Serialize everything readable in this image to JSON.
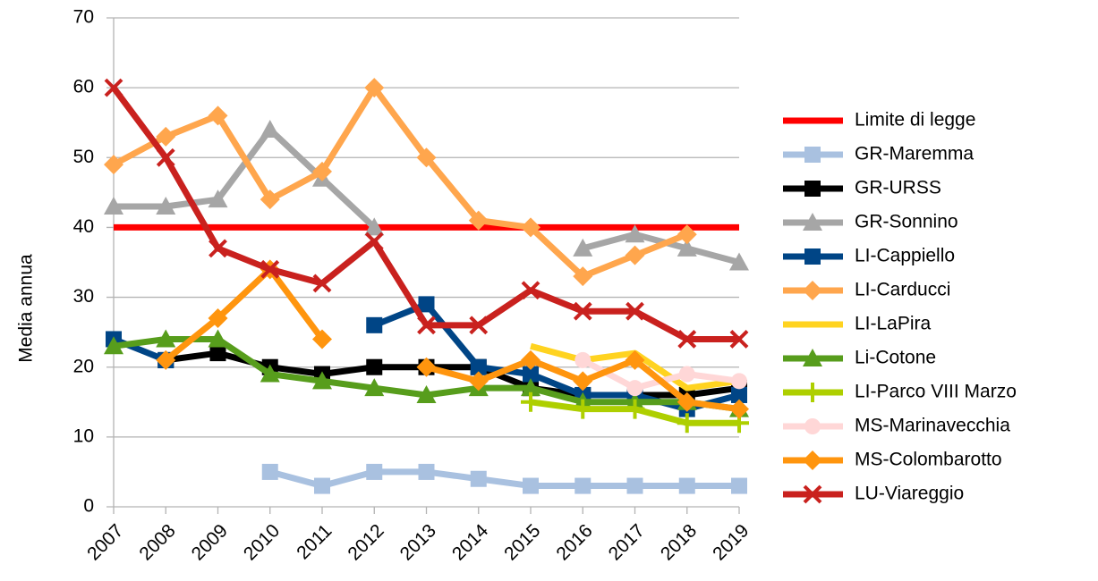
{
  "chart_data": {
    "type": "line",
    "y_label": "Media annua",
    "categories": [
      "2007",
      "2008",
      "2009",
      "2010",
      "2011",
      "2012",
      "2013",
      "2014",
      "2015",
      "2016",
      "2017",
      "2018",
      "2019"
    ],
    "ylim": [
      0,
      70
    ],
    "yticks": [
      0,
      10,
      20,
      30,
      40,
      50,
      60,
      70
    ],
    "grid": true,
    "legend": "right",
    "series": [
      {
        "name": "Limite di legge",
        "color": "#ff0000",
        "marker": "none",
        "values": [
          40,
          40,
          40,
          40,
          40,
          40,
          40,
          40,
          40,
          40,
          40,
          40,
          40
        ]
      },
      {
        "name": "GR-Maremma",
        "color": "#a9c1e0",
        "marker": "square",
        "values": [
          null,
          null,
          null,
          5,
          3,
          5,
          5,
          4,
          3,
          3,
          3,
          3,
          3
        ]
      },
      {
        "name": "GR-URSS",
        "color": "#000000",
        "marker": "square",
        "values": [
          null,
          21,
          22,
          20,
          19,
          20,
          20,
          20,
          17,
          16,
          16,
          16,
          17
        ]
      },
      {
        "name": "GR-Sonnino",
        "color": "#a6a6a6",
        "marker": "triangle",
        "values": [
          43,
          43,
          44,
          54,
          47,
          40,
          null,
          null,
          null,
          37,
          39,
          37,
          35
        ]
      },
      {
        "name": "LI-Cappiello",
        "color": "#004586",
        "marker": "square",
        "values": [
          24,
          21,
          null,
          null,
          null,
          26,
          29,
          20,
          19,
          16,
          16,
          14,
          16
        ]
      },
      {
        "name": "LI-Carducci",
        "color": "#ffa64d",
        "marker": "diamond",
        "values": [
          49,
          53,
          56,
          44,
          48,
          60,
          50,
          41,
          40,
          33,
          36,
          39,
          null
        ]
      },
      {
        "name": "LI-LaPira",
        "color": "#ffd320",
        "marker": "none",
        "values": [
          null,
          null,
          null,
          null,
          null,
          null,
          null,
          null,
          23,
          21,
          22,
          17,
          18
        ]
      },
      {
        "name": "Li-Cotone",
        "color": "#579d1c",
        "marker": "triangle",
        "values": [
          23,
          24,
          24,
          19,
          18,
          17,
          16,
          17,
          17,
          15,
          15,
          15,
          14
        ]
      },
      {
        "name": "LI-Parco VIII Marzo",
        "color": "#aecf00",
        "marker": "plus",
        "values": [
          null,
          null,
          null,
          null,
          null,
          null,
          null,
          null,
          15,
          14,
          14,
          12,
          12
        ]
      },
      {
        "name": "MS-Marinavecchia",
        "color": "#ffd7d7",
        "marker": "circle",
        "values": [
          null,
          null,
          null,
          null,
          null,
          null,
          null,
          null,
          null,
          21,
          17,
          19,
          18
        ]
      },
      {
        "name": "MS-Colombarotto",
        "color": "#ff950e",
        "marker": "diamond",
        "values": [
          null,
          21,
          27,
          34,
          24,
          null,
          20,
          18,
          21,
          18,
          21,
          15,
          14
        ]
      },
      {
        "name": "LU-Viareggio",
        "color": "#c9211e",
        "marker": "cross",
        "values": [
          60,
          50,
          37,
          34,
          32,
          38,
          26,
          26,
          31,
          28,
          28,
          24,
          24
        ]
      }
    ]
  }
}
